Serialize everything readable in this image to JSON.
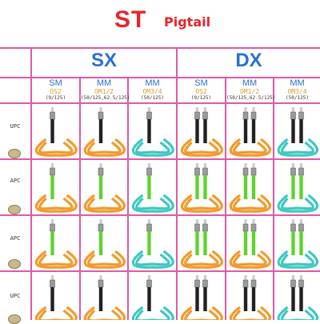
{
  "header": {
    "title_main": "ST",
    "title_sub": "Pigtail"
  },
  "groups": [
    {
      "label": "SX"
    },
    {
      "label": "DX"
    }
  ],
  "columns": [
    {
      "type": "SM",
      "fiber": "OS2",
      "size": "(9/125)"
    },
    {
      "type": "MM",
      "fiber": "OM1/2",
      "size": "(50/125,62.5/125)"
    },
    {
      "type": "MM",
      "fiber": "OM3/4",
      "size": "(50/125)"
    },
    {
      "type": "SM",
      "fiber": "OS2",
      "size": "(9/125)"
    },
    {
      "type": "MM",
      "fiber": "OM1/2",
      "size": "(50/125,62.5/125)"
    },
    {
      "type": "MM",
      "fiber": "OM3/4",
      "size": "(50/125)"
    }
  ],
  "rows": [
    {
      "label": "UPC"
    },
    {
      "label": "APC"
    },
    {
      "label": "APC"
    },
    {
      "label": "UPC"
    }
  ],
  "colors": {
    "accent_red": "#e8242b",
    "grid_pink": "#e05aa6",
    "heading_blue": "#2a6fd3",
    "cable_orange": "#f39a2a",
    "cable_aqua": "#3ec9c2",
    "boot_black": "#222222",
    "boot_green": "#5fd32e"
  }
}
